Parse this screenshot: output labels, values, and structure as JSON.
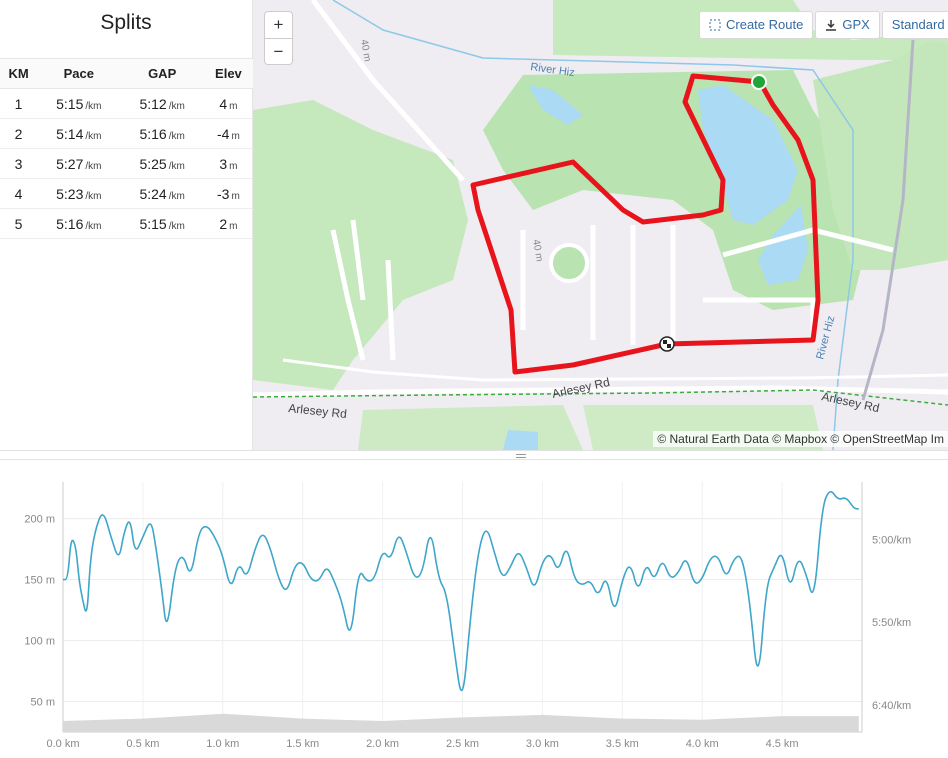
{
  "splits": {
    "title": "Splits",
    "headers": [
      "KM",
      "Pace",
      "GAP",
      "Elev"
    ],
    "rows": [
      {
        "km": "1",
        "pace": "5:15",
        "gap": "5:12",
        "elev": "4"
      },
      {
        "km": "2",
        "pace": "5:14",
        "gap": "5:16",
        "elev": "-4"
      },
      {
        "km": "3",
        "pace": "5:27",
        "gap": "5:25",
        "elev": "3"
      },
      {
        "km": "4",
        "pace": "5:23",
        "gap": "5:24",
        "elev": "-3"
      },
      {
        "km": "5",
        "pace": "5:16",
        "gap": "5:15",
        "elev": "2"
      }
    ],
    "pace_unit": "/km",
    "elev_unit": "m"
  },
  "map": {
    "zoom_in": "+",
    "zoom_out": "−",
    "create_route": "Create Route",
    "gpx": "GPX",
    "standard": "Standard Ma",
    "labels": {
      "river1": "River Hiz",
      "river2": "River Hiz",
      "road1": "Arlesey Rd",
      "road2": "Arlesey Rd",
      "road3": "Arlesey Rd",
      "m1": "40 m",
      "m2": "40 m"
    },
    "attribution": "© Natural Earth Data © Mapbox © OpenStreetMap Im",
    "route_color": "#e8141c",
    "start_color": "#1fa637"
  },
  "chart_data": {
    "type": "line",
    "x_ticks": [
      "0.0 km",
      "0.5 km",
      "1.0 km",
      "1.5 km",
      "2.0 km",
      "2.5 km",
      "3.0 km",
      "3.5 km",
      "4.0 km",
      "4.5 km"
    ],
    "y_left_ticks": [
      "200 m",
      "150 m",
      "100 m",
      "50 m"
    ],
    "y_right_ticks": [
      "5:00/km",
      "5:50/km",
      "6:40/km"
    ],
    "line_color": "#3ea6c9",
    "elevation_color": "#d9d9d9",
    "pace_series": {
      "x": [
        0.0,
        0.03,
        0.05,
        0.08,
        0.1,
        0.12,
        0.15,
        0.17,
        0.2,
        0.25,
        0.3,
        0.35,
        0.38,
        0.42,
        0.45,
        0.5,
        0.55,
        0.58,
        0.62,
        0.65,
        0.7,
        0.75,
        0.8,
        0.85,
        0.9,
        0.95,
        1.0,
        1.05,
        1.1,
        1.15,
        1.2,
        1.25,
        1.3,
        1.35,
        1.4,
        1.45,
        1.5,
        1.55,
        1.6,
        1.65,
        1.7,
        1.75,
        1.8,
        1.85,
        1.9,
        1.95,
        2.0,
        2.05,
        2.1,
        2.15,
        2.2,
        2.25,
        2.3,
        2.35,
        2.4,
        2.45,
        2.5,
        2.55,
        2.6,
        2.65,
        2.7,
        2.75,
        2.8,
        2.85,
        2.9,
        2.95,
        3.0,
        3.05,
        3.1,
        3.15,
        3.2,
        3.25,
        3.3,
        3.35,
        3.4,
        3.45,
        3.5,
        3.55,
        3.6,
        3.65,
        3.7,
        3.75,
        3.8,
        3.85,
        3.9,
        3.95,
        4.0,
        4.05,
        4.1,
        4.15,
        4.2,
        4.25,
        4.3,
        4.35,
        4.4,
        4.45,
        4.5,
        4.55,
        4.6,
        4.65,
        4.7,
        4.75,
        4.8,
        4.85,
        4.9,
        4.95,
        4.98
      ],
      "y": [
        150,
        150,
        185,
        178,
        150,
        135,
        118,
        165,
        190,
        208,
        185,
        165,
        188,
        202,
        170,
        185,
        200,
        178,
        140,
        105,
        160,
        172,
        150,
        190,
        195,
        185,
        170,
        140,
        165,
        150,
        175,
        190,
        175,
        150,
        138,
        162,
        165,
        150,
        148,
        162,
        148,
        130,
        98,
        160,
        148,
        150,
        175,
        165,
        190,
        172,
        150,
        155,
        195,
        150,
        140,
        90,
        45,
        120,
        175,
        195,
        172,
        150,
        160,
        175,
        160,
        140,
        165,
        172,
        155,
        180,
        150,
        145,
        150,
        135,
        155,
        120,
        150,
        165,
        138,
        165,
        148,
        168,
        150,
        155,
        170,
        145,
        150,
        168,
        170,
        150,
        168,
        170,
        130,
        60,
        145,
        160,
        175,
        140,
        170,
        155,
        130,
        210,
        225,
        215,
        218,
        208,
        208
      ]
    },
    "elevation_series": {
      "x": [
        0.0,
        0.5,
        1.0,
        1.5,
        2.0,
        2.5,
        3.0,
        3.5,
        4.0,
        4.5,
        4.98
      ],
      "y": [
        34,
        36,
        40,
        36,
        34,
        37,
        39,
        36,
        35,
        38,
        38
      ]
    },
    "xlim": [
      0,
      5.0
    ],
    "ylim_left": [
      25,
      230
    ]
  }
}
